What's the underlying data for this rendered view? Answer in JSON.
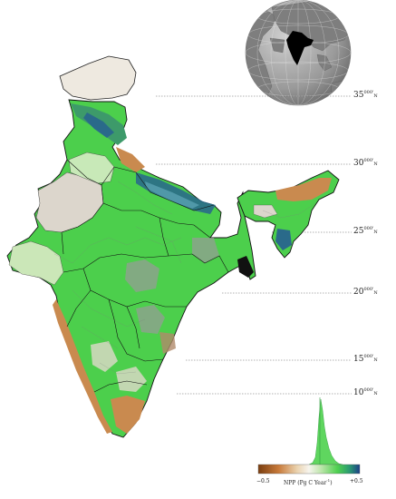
{
  "map": {
    "latitudes": [
      {
        "value": "35",
        "deg_mark": "0",
        "min_mark": "00'",
        "hemisphere": "N"
      },
      {
        "value": "30",
        "deg_mark": "0",
        "min_mark": "00'",
        "hemisphere": "N"
      },
      {
        "value": "25",
        "deg_mark": "0",
        "min_mark": "00'",
        "hemisphere": "N"
      },
      {
        "value": "20",
        "deg_mark": "0",
        "min_mark": "00'",
        "hemisphere": "N"
      },
      {
        "value": "15",
        "deg_mark": "0",
        "min_mark": "00'",
        "hemisphere": "N"
      },
      {
        "value": "10",
        "deg_mark": "0",
        "min_mark": "00'",
        "hemisphere": "N"
      }
    ]
  },
  "legend": {
    "min_label": "−0.5",
    "max_label": "+0.5",
    "title": "NPP (Pg C Year",
    "title_exponent": "-1",
    "title_close": ")",
    "colors": [
      "#8a4a16",
      "#c87a3a",
      "#e8c89a",
      "#f4f0e6",
      "#cfe8c0",
      "#5fd65f",
      "#2e9a6a",
      "#1e4a8a"
    ]
  },
  "colors": {
    "vegetation": "#4ccf4c",
    "arid": "#c98a4f",
    "sparse": "#d9d0c4",
    "himalaya_blue": "#2a6a8a",
    "globe_ocean": "#9a9a9a",
    "globe_land": "#6a6a6a",
    "india_highlight": "#000000"
  }
}
